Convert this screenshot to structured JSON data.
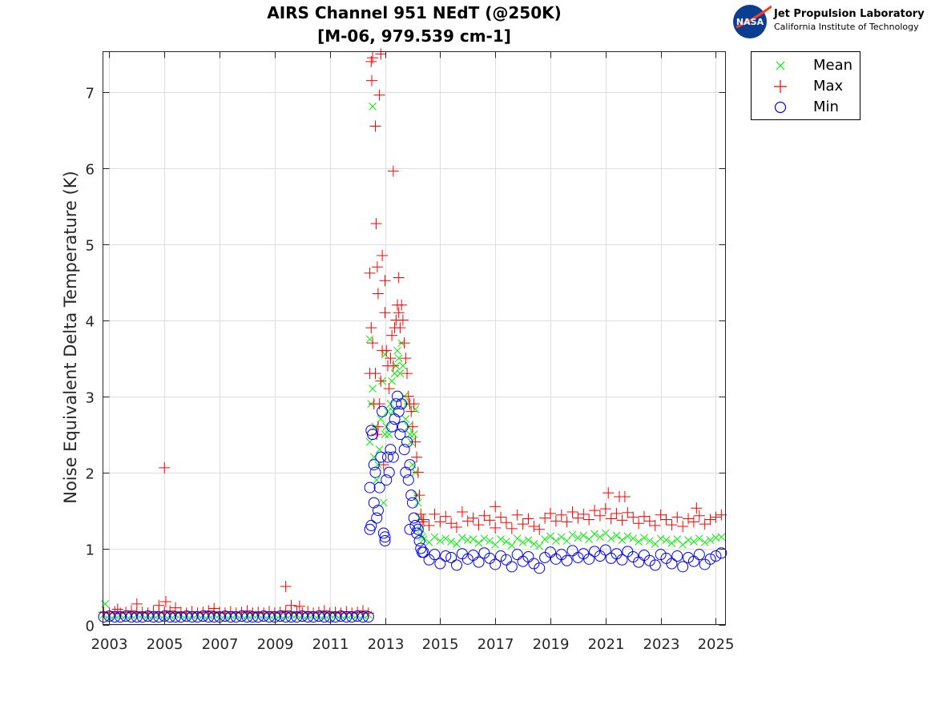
{
  "logo": {
    "org_name": "Jet Propulsion Laboratory",
    "org_subtitle": "California Institute of Technology",
    "emblem_text": "NASA"
  },
  "chart_data": {
    "type": "scatter",
    "title": [
      "AIRS Channel 951 NEdT (@250K)",
      "[M-06, 979.539 cm-1]"
    ],
    "xlabel": "",
    "ylabel": "Noise Equivalent Delta Temperature (K)",
    "xlim": [
      2002.77,
      2025.35
    ],
    "ylim": [
      0,
      7.53
    ],
    "xticks": [
      2003,
      2005,
      2007,
      2009,
      2011,
      2013,
      2015,
      2017,
      2019,
      2021,
      2023,
      2025
    ],
    "yticks": [
      0,
      1,
      2,
      3,
      4,
      5,
      6,
      7
    ],
    "grid": true,
    "legend_position": "outside-top-right",
    "x": [
      2002.8,
      2003.0,
      2003.2,
      2003.4,
      2003.6,
      2003.8,
      2004.0,
      2004.2,
      2004.4,
      2004.6,
      2004.8,
      2005.0,
      2005.2,
      2005.4,
      2005.6,
      2005.8,
      2006.0,
      2006.2,
      2006.4,
      2006.6,
      2006.8,
      2007.0,
      2007.2,
      2007.4,
      2007.6,
      2007.8,
      2008.0,
      2008.2,
      2008.4,
      2008.6,
      2008.8,
      2009.0,
      2009.2,
      2009.4,
      2009.6,
      2009.8,
      2010.0,
      2010.2,
      2010.4,
      2010.6,
      2010.8,
      2011.0,
      2011.2,
      2011.4,
      2011.6,
      2011.8,
      2012.0,
      2012.2,
      2012.4,
      2012.45,
      2012.5,
      2012.55,
      2012.6,
      2012.65,
      2012.7,
      2012.75,
      2012.8,
      2012.85,
      2012.9,
      2012.95,
      2013.0,
      2013.05,
      2013.1,
      2013.15,
      2013.2,
      2013.25,
      2013.3,
      2013.35,
      2013.4,
      2013.45,
      2013.5,
      2013.55,
      2013.6,
      2013.65,
      2013.7,
      2013.75,
      2013.8,
      2013.85,
      2013.9,
      2013.95,
      2014.0,
      2014.05,
      2014.1,
      2014.15,
      2014.2,
      2014.25,
      2014.3,
      2014.35,
      2014.4,
      2014.6,
      2014.8,
      2015.0,
      2015.2,
      2015.4,
      2015.6,
      2015.8,
      2016.0,
      2016.2,
      2016.4,
      2016.6,
      2016.8,
      2017.0,
      2017.2,
      2017.4,
      2017.6,
      2017.8,
      2018.0,
      2018.2,
      2018.4,
      2018.6,
      2018.8,
      2019.0,
      2019.2,
      2019.4,
      2019.6,
      2019.8,
      2020.0,
      2020.2,
      2020.4,
      2020.6,
      2020.8,
      2021.0,
      2021.2,
      2021.4,
      2021.6,
      2021.8,
      2022.0,
      2022.2,
      2022.4,
      2022.6,
      2022.8,
      2023.0,
      2023.2,
      2023.4,
      2023.6,
      2023.8,
      2024.0,
      2024.2,
      2024.4,
      2024.6,
      2024.8,
      2025.0,
      2025.2
    ],
    "series": [
      {
        "name": "Mean",
        "marker": "x",
        "color": "#00ee00",
        "y": [
          0.13,
          0.12,
          0.12,
          0.13,
          0.12,
          0.12,
          0.13,
          0.13,
          0.12,
          0.12,
          0.13,
          0.12,
          0.12,
          0.13,
          0.13,
          0.12,
          0.12,
          0.13,
          0.12,
          0.12,
          0.13,
          0.13,
          0.12,
          0.12,
          0.13,
          0.12,
          0.12,
          0.13,
          0.13,
          0.12,
          0.12,
          0.13,
          0.12,
          0.12,
          0.13,
          0.13,
          0.12,
          0.12,
          0.13,
          0.12,
          0.12,
          0.13,
          0.13,
          0.12,
          0.12,
          0.13,
          0.12,
          0.12,
          0.13,
          2.4,
          2.9,
          3.1,
          2.2,
          2.6,
          1.9,
          2.1,
          2.3,
          2.7,
          3.2,
          1.6,
          2.5,
          2.6,
          2.8,
          2.5,
          2.9,
          3.2,
          2.8,
          3.3,
          3.4,
          3.6,
          3.5,
          3.3,
          3.7,
          3.4,
          3.0,
          2.7,
          2.9,
          2.6,
          2.5,
          2.4,
          2.1,
          2.5,
          2.0,
          1.7,
          1.6,
          1.4,
          1.25,
          1.15,
          1.12,
          1.08,
          1.15,
          1.1,
          1.13,
          1.09,
          1.06,
          1.14,
          1.11,
          1.12,
          1.07,
          1.13,
          1.1,
          1.05,
          1.12,
          1.09,
          1.04,
          1.13,
          1.08,
          1.11,
          1.06,
          1.03,
          1.12,
          1.16,
          1.1,
          1.15,
          1.1,
          1.18,
          1.14,
          1.17,
          1.12,
          1.19,
          1.15,
          1.2,
          1.13,
          1.17,
          1.11,
          1.16,
          1.13,
          1.09,
          1.14,
          1.1,
          1.06,
          1.13,
          1.11,
          1.07,
          1.12,
          1.05,
          1.11,
          1.09,
          1.13,
          1.08,
          1.11,
          1.14,
          1.15
        ],
        "extra": [
          [
            2002.85,
            0.27
          ],
          [
            2012.55,
            6.81
          ],
          [
            2012.45,
            3.75
          ],
          [
            2014.1,
            2.83
          ],
          [
            2013.0,
            3.55
          ]
        ]
      },
      {
        "name": "Max",
        "marker": "+",
        "color": "#ff0000",
        "y": [
          0.16,
          0.15,
          0.17,
          0.15,
          0.16,
          0.18,
          0.15,
          0.16,
          0.15,
          0.17,
          0.15,
          0.16,
          0.18,
          0.15,
          0.16,
          0.15,
          0.17,
          0.15,
          0.16,
          0.18,
          0.15,
          0.16,
          0.15,
          0.17,
          0.15,
          0.16,
          0.18,
          0.15,
          0.16,
          0.15,
          0.17,
          0.15,
          0.16,
          0.18,
          0.15,
          0.16,
          0.15,
          0.17,
          0.15,
          0.16,
          0.18,
          0.15,
          0.16,
          0.15,
          0.17,
          0.15,
          0.16,
          0.18,
          0.15,
          3.3,
          3.9,
          3.7,
          2.9,
          3.3,
          2.5,
          2.6,
          2.9,
          3.2,
          3.6,
          2.1,
          4.1,
          3.6,
          3.4,
          3.1,
          3.5,
          3.8,
          3.4,
          3.9,
          4.0,
          4.2,
          4.1,
          3.9,
          4.2,
          4.0,
          3.7,
          3.5,
          3.3,
          3.0,
          2.9,
          2.8,
          2.6,
          2.9,
          2.4,
          2.2,
          2.0,
          1.7,
          1.45,
          1.35,
          1.38,
          1.3,
          1.45,
          1.35,
          1.42,
          1.33,
          1.28,
          1.48,
          1.36,
          1.4,
          1.31,
          1.43,
          1.37,
          1.27,
          1.41,
          1.34,
          1.26,
          1.44,
          1.32,
          1.39,
          1.29,
          1.25,
          1.4,
          1.46,
          1.36,
          1.44,
          1.35,
          1.48,
          1.4,
          1.45,
          1.38,
          1.5,
          1.43,
          1.52,
          1.39,
          1.46,
          1.37,
          1.47,
          1.41,
          1.33,
          1.42,
          1.36,
          1.3,
          1.44,
          1.38,
          1.31,
          1.41,
          1.29,
          1.39,
          1.35,
          1.43,
          1.32,
          1.38,
          1.41,
          1.44
        ],
        "extra": [
          [
            2003.3,
            0.2
          ],
          [
            2004.0,
            0.27
          ],
          [
            2004.8,
            0.25
          ],
          [
            2005.0,
            2.06
          ],
          [
            2005.05,
            0.3
          ],
          [
            2005.4,
            0.22
          ],
          [
            2006.8,
            0.21
          ],
          [
            2009.4,
            0.5
          ],
          [
            2009.6,
            0.25
          ],
          [
            2009.9,
            0.24
          ],
          [
            2012.45,
            4.62
          ],
          [
            2012.5,
            7.4
          ],
          [
            2012.52,
            7.15
          ],
          [
            2012.55,
            7.45
          ],
          [
            2012.65,
            6.55
          ],
          [
            2012.68,
            5.27
          ],
          [
            2012.72,
            4.7
          ],
          [
            2012.75,
            4.35
          ],
          [
            2012.8,
            6.96
          ],
          [
            2012.85,
            7.5
          ],
          [
            2012.9,
            4.85
          ],
          [
            2013.0,
            4.52
          ],
          [
            2013.3,
            5.96
          ],
          [
            2013.5,
            4.56
          ],
          [
            2017.0,
            1.55
          ],
          [
            2021.1,
            1.73
          ],
          [
            2021.5,
            1.68
          ],
          [
            2021.7,
            1.68
          ],
          [
            2024.3,
            1.53
          ]
        ]
      },
      {
        "name": "Min",
        "marker": "o",
        "color": "#0000ee",
        "y": [
          0.1,
          0.11,
          0.1,
          0.1,
          0.11,
          0.1,
          0.1,
          0.1,
          0.11,
          0.1,
          0.1,
          0.11,
          0.1,
          0.1,
          0.1,
          0.11,
          0.1,
          0.1,
          0.11,
          0.1,
          0.1,
          0.1,
          0.11,
          0.1,
          0.1,
          0.11,
          0.1,
          0.1,
          0.1,
          0.11,
          0.1,
          0.1,
          0.11,
          0.1,
          0.1,
          0.1,
          0.11,
          0.1,
          0.1,
          0.11,
          0.1,
          0.1,
          0.1,
          0.11,
          0.1,
          0.1,
          0.11,
          0.1,
          0.1,
          1.8,
          1.3,
          2.5,
          1.6,
          2.0,
          1.4,
          1.5,
          1.8,
          2.2,
          2.8,
          1.2,
          1.1,
          1.9,
          2.2,
          2.0,
          2.3,
          2.6,
          2.2,
          2.7,
          2.9,
          3.0,
          2.8,
          2.5,
          2.9,
          2.6,
          2.3,
          2.0,
          2.4,
          1.9,
          2.1,
          1.7,
          1.6,
          1.4,
          1.3,
          1.2,
          1.25,
          1.1,
          1.0,
          0.95,
          0.95,
          0.85,
          0.92,
          0.8,
          0.9,
          0.88,
          0.78,
          0.93,
          0.86,
          0.91,
          0.82,
          0.94,
          0.87,
          0.79,
          0.9,
          0.85,
          0.76,
          0.92,
          0.83,
          0.89,
          0.8,
          0.74,
          0.88,
          0.95,
          0.86,
          0.92,
          0.84,
          0.97,
          0.88,
          0.93,
          0.86,
          0.96,
          0.9,
          0.98,
          0.87,
          0.93,
          0.85,
          0.96,
          0.89,
          0.82,
          0.91,
          0.84,
          0.78,
          0.92,
          0.87,
          0.8,
          0.9,
          0.76,
          0.88,
          0.83,
          0.92,
          0.79,
          0.86,
          0.9,
          0.94
        ],
        "extra": [
          [
            2012.45,
            1.25
          ],
          [
            2013.0,
            1.15
          ],
          [
            2013.9,
            1.25
          ],
          [
            2012.5,
            2.55
          ],
          [
            2012.6,
            2.1
          ]
        ]
      }
    ]
  }
}
